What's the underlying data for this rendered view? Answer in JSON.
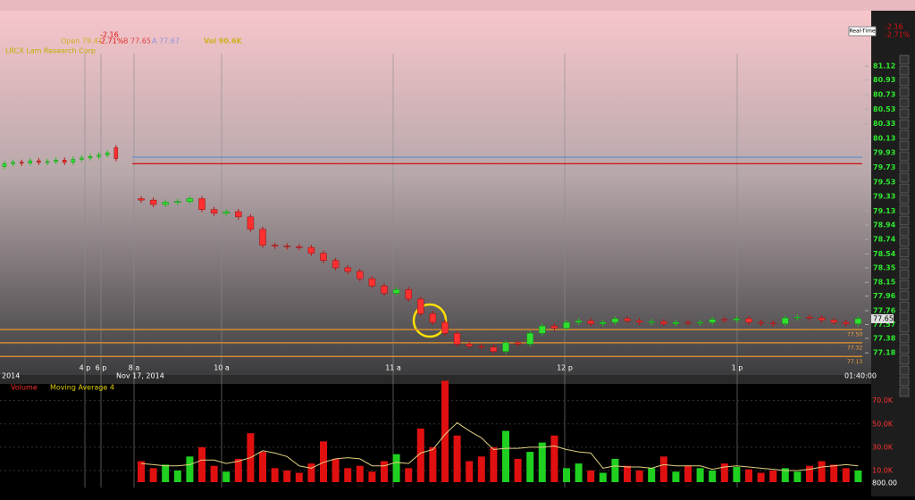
{
  "header": {
    "change": "-2.16",
    "change_pct": "-2.71%",
    "open": "Open 79.41",
    "bid": "B 77.65",
    "ask": "A 77.67",
    "volume": "Vol 90.6K",
    "realtime": "Real-Time",
    "study": "LRCX Lam Research Corp"
  },
  "chart_data": {
    "type": "candlestick",
    "ylim": [
      77.06,
      81.27
    ],
    "yticks": [
      81.12,
      80.93,
      80.73,
      80.53,
      80.33,
      80.13,
      79.93,
      79.73,
      79.53,
      79.33,
      79.13,
      78.94,
      78.74,
      78.54,
      78.35,
      78.15,
      77.96,
      77.76,
      77.57,
      77.38,
      77.18
    ],
    "premarket": {
      "open": [
        79.74,
        79.78,
        79.8,
        79.79,
        79.82,
        79.8,
        79.81,
        79.83,
        79.8,
        79.84,
        79.86,
        79.88,
        79.9,
        80.0
      ],
      "close": [
        79.78,
        79.8,
        79.79,
        79.82,
        79.8,
        79.81,
        79.83,
        79.8,
        79.84,
        79.86,
        79.88,
        79.9,
        79.93,
        79.85
      ]
    },
    "session": {
      "open": [
        79.3,
        79.28,
        79.22,
        79.25,
        79.26,
        79.3,
        79.15,
        79.1,
        79.12,
        79.05,
        78.88,
        78.66,
        78.65,
        78.64,
        78.63,
        78.55,
        78.45,
        78.35,
        78.3,
        78.2,
        78.1,
        78.0,
        78.05,
        77.92,
        77.72,
        77.6,
        77.45,
        77.3,
        77.27,
        77.26,
        77.2,
        77.32,
        77.3,
        77.45,
        77.55,
        77.52,
        77.6,
        77.62,
        77.58,
        77.6,
        77.65,
        77.62,
        77.6,
        77.61,
        77.58,
        77.6,
        77.59,
        77.6,
        77.64,
        77.63,
        77.65,
        77.6,
        77.59,
        77.58,
        77.66,
        77.67,
        77.66,
        77.63,
        77.6,
        77.58
      ],
      "close": [
        79.28,
        79.22,
        79.25,
        79.26,
        79.3,
        79.15,
        79.1,
        79.12,
        79.05,
        78.88,
        78.66,
        78.65,
        78.64,
        78.63,
        78.55,
        78.45,
        78.35,
        78.3,
        78.2,
        78.1,
        78.0,
        78.05,
        77.92,
        77.72,
        77.6,
        77.45,
        77.3,
        77.27,
        77.26,
        77.2,
        77.32,
        77.3,
        77.45,
        77.55,
        77.52,
        77.6,
        77.62,
        77.58,
        77.6,
        77.65,
        77.62,
        77.6,
        77.61,
        77.58,
        77.6,
        77.59,
        77.6,
        77.64,
        77.63,
        77.65,
        77.6,
        77.59,
        77.58,
        77.66,
        77.67,
        77.66,
        77.63,
        77.6,
        77.58,
        77.65
      ],
      "volume": [
        18000,
        12000,
        15000,
        10000,
        22000,
        30000,
        14000,
        9000,
        20000,
        42000,
        26000,
        12000,
        10000,
        8000,
        16000,
        35000,
        20000,
        12000,
        14000,
        9000,
        18000,
        24000,
        12000,
        46000,
        30000,
        87000,
        40000,
        18000,
        22000,
        30000,
        44000,
        20000,
        26000,
        34000,
        40000,
        12000,
        16000,
        10000,
        8000,
        20000,
        14000,
        10000,
        12000,
        22000,
        9000,
        14000,
        12000,
        10000,
        16000,
        13000,
        11000,
        8000,
        10000,
        12000,
        9000,
        14000,
        18000,
        15000,
        12000,
        10000
      ],
      "moving_average": [
        16000,
        15000,
        14000,
        14000,
        15000,
        19000,
        19000,
        16000,
        18000,
        21000,
        27000,
        25000,
        22000,
        14000,
        12000,
        17000,
        20000,
        21000,
        20000,
        14000,
        14000,
        17000,
        16000,
        25000,
        28000,
        41000,
        51000,
        44000,
        38000,
        28000,
        29000,
        29000,
        30000,
        30000,
        31000,
        28000,
        26000,
        25000,
        12000,
        14000,
        13000,
        13000,
        12000,
        15000,
        14000,
        14000,
        14000,
        11000,
        13000,
        14000,
        13000,
        12000,
        11000,
        10000,
        10000,
        11000,
        13000,
        14000,
        15000,
        14000
      ]
    },
    "levels": [
      {
        "value": 79.87,
        "color": "#5b8fd0"
      },
      {
        "value": 79.78,
        "color": "#d01010"
      },
      {
        "value": 77.5,
        "label": "77.50",
        "color": "#d08a30"
      },
      {
        "value": 77.32,
        "label": "77.32",
        "color": "#d08a30"
      },
      {
        "value": 77.13,
        "label": "77.13",
        "color": "#d08a30"
      }
    ],
    "last_price": "77.65",
    "time_labels": [
      "4 p",
      "6 p",
      "8 a",
      "10 a",
      "11 a",
      "12 p",
      "1 p"
    ],
    "date_labels": [
      "2014",
      "Nov 17, 2014",
      "01:40:00"
    ],
    "volume_pane": {
      "title": "Volume",
      "ma_title": "Moving Average 4",
      "ylim": [
        0,
        82000
      ],
      "yticks": [
        {
          "value": 10000,
          "label": "10.0K"
        },
        {
          "value": 30000,
          "label": "30.0K"
        },
        {
          "value": 50000,
          "label": "50.0K"
        },
        {
          "value": 70000,
          "label": "70.0K"
        }
      ],
      "max_label": "800.00"
    }
  }
}
